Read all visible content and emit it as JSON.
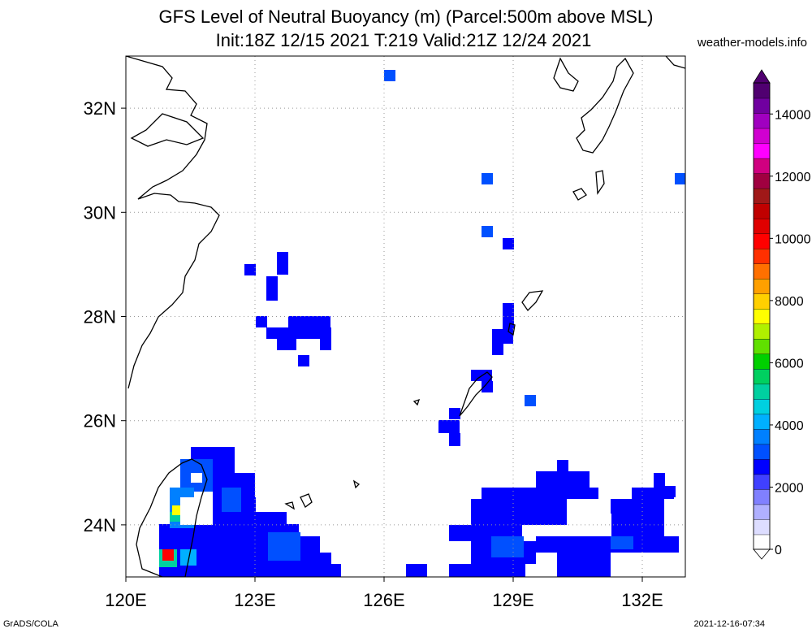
{
  "header": {
    "title_line1": "GFS Level of Neutral Buoyancy (m) (Parcel:500m above MSL)",
    "title_line2": "Init:18Z 12/15 2021 T:219 Valid:21Z 12/24 2021",
    "site": "weather-models.info"
  },
  "map": {
    "lon_range": [
      120,
      133
    ],
    "lat_range": [
      23,
      33
    ],
    "lat_labels": [
      "32N",
      "30N",
      "28N",
      "26N",
      "24N"
    ],
    "lat_values": [
      32,
      30,
      28,
      26,
      24
    ],
    "lon_labels": [
      "120E",
      "123E",
      "126E",
      "129E",
      "132E"
    ],
    "lon_values": [
      120,
      123,
      126,
      129,
      132
    ]
  },
  "colorbar": {
    "labels": [
      "0",
      "2000",
      "4000",
      "6000",
      "8000",
      "10000",
      "12000",
      "14000"
    ],
    "values": [
      0,
      2000,
      4000,
      6000,
      8000,
      10000,
      12000,
      14000
    ],
    "max": 15000,
    "colors": [
      "#ffffff",
      "#ddddff",
      "#b0b0ff",
      "#8080ff",
      "#4040ff",
      "#0000ff",
      "#0050ff",
      "#0080ff",
      "#00b0ff",
      "#00d0e0",
      "#00d0a0",
      "#00d060",
      "#00d000",
      "#60e000",
      "#b0f000",
      "#ffff00",
      "#ffd000",
      "#ffa000",
      "#ff7000",
      "#ff3000",
      "#ff0000",
      "#e00000",
      "#c00000",
      "#a01818",
      "#a00040",
      "#d00080",
      "#ff00ff",
      "#d000d0",
      "#a000c0",
      "#7000a0",
      "#500070"
    ]
  },
  "footer": {
    "left": "GrADS/COLA",
    "right": "2021-12-16-07:34"
  }
}
